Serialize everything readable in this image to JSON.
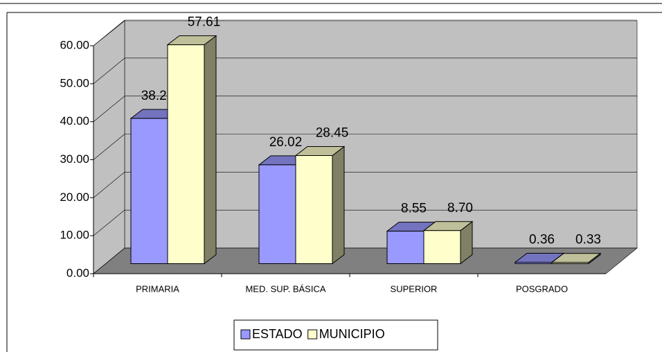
{
  "chart_data": {
    "type": "bar3d",
    "categories": [
      "PRIMARIA",
      "MED. SUP. BÁSICA",
      "SUPERIOR",
      "POSGRADO"
    ],
    "series": [
      {
        "name": "ESTADO",
        "color": "#9999ff",
        "values": [
          38.23,
          26.02,
          8.55,
          0.36
        ],
        "value_labels": [
          "38.23",
          "26.02",
          "8.55",
          "0.36"
        ]
      },
      {
        "name": "MUNICIPIO",
        "color": "#ffffcc",
        "values": [
          57.61,
          28.45,
          8.7,
          0.33
        ],
        "value_labels": [
          "57.61",
          "28.45",
          "8.70",
          "0.33"
        ]
      }
    ],
    "ylim": [
      0,
      60
    ],
    "yticks": [
      {
        "value": 0,
        "label": "0.00"
      },
      {
        "value": 10,
        "label": "10.00"
      },
      {
        "value": 20,
        "label": "20.00"
      },
      {
        "value": 30,
        "label": "30.00"
      },
      {
        "value": 40,
        "label": "40.00"
      },
      {
        "value": 50,
        "label": "50.00"
      },
      {
        "value": 60,
        "label": "60.00"
      }
    ],
    "grid": true,
    "legend": "bottom"
  }
}
